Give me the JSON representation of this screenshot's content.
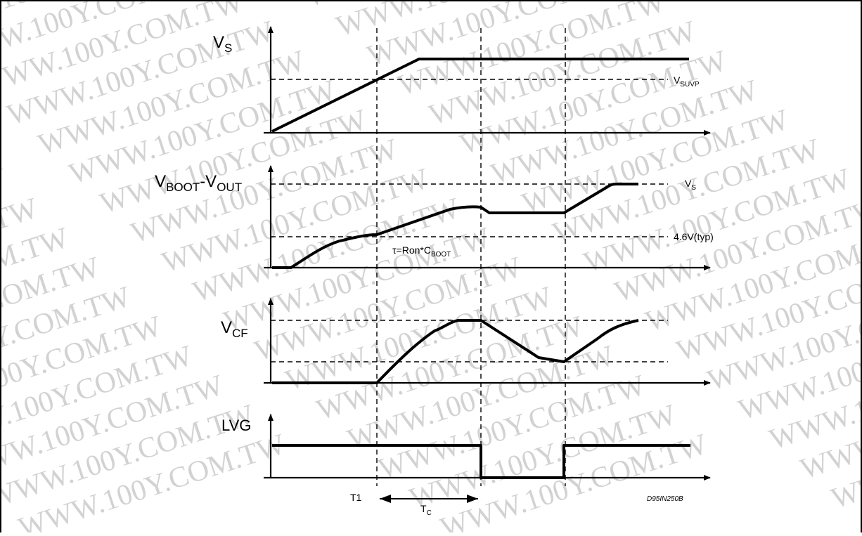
{
  "watermark": "WWW.100Y.COM.TW",
  "signals": {
    "vs": {
      "main": "V",
      "sub": "S"
    },
    "vboot": {
      "main1": "V",
      "sub1": "BOOT",
      "main2": "-V",
      "sub2": "OUT"
    },
    "vcf": {
      "main": "V",
      "sub": "CF"
    },
    "lvg": {
      "label": "LVG"
    }
  },
  "annotations": {
    "vsuvp": {
      "main": "V",
      "sub": "SUVP"
    },
    "vs_ref": {
      "main": "V",
      "sub": "S"
    },
    "vtyp": "4.6V(typ)",
    "tau": {
      "main": "τ=Ron*C",
      "sub": "BOOT"
    },
    "t1": "T1",
    "tc": {
      "main": "T",
      "sub": "C"
    },
    "code": "D95IN250B"
  }
}
